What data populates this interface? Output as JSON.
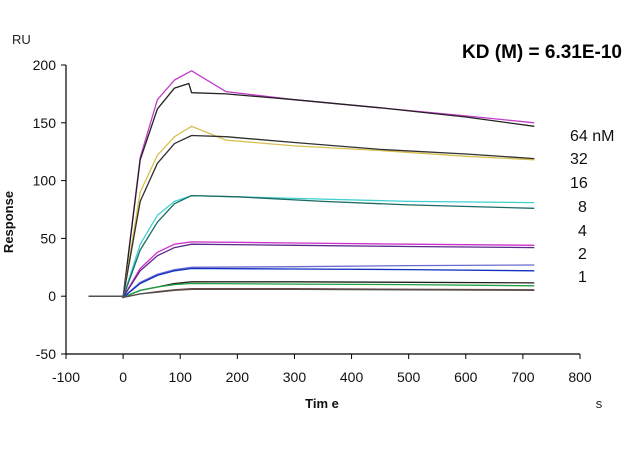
{
  "chart_data": {
    "type": "line",
    "title": "KD (M) = 6.31E-10",
    "xlabel": "Tim e",
    "ylabel": "Response",
    "y_unit": "RU",
    "x_unit": "s",
    "xlim": [
      -100,
      800
    ],
    "ylim": [
      -50,
      200
    ],
    "x_ticks": [
      "-100",
      "0",
      "100",
      "200",
      "300",
      "400",
      "500",
      "600",
      "700",
      "800"
    ],
    "y_ticks": [
      "-50",
      "0",
      "50",
      "100",
      "150",
      "200"
    ],
    "concentration_labels": [
      "64 nM",
      "32",
      "16",
      "8",
      "4",
      "2",
      "1"
    ],
    "grid": false,
    "series": [
      {
        "color": "#c03cc8",
        "values": [
          [
            -60,
            0
          ],
          [
            -2,
            0
          ],
          [
            0,
            -1
          ],
          [
            30,
            120
          ],
          [
            60,
            170
          ],
          [
            90,
            187
          ],
          [
            120,
            195
          ],
          [
            180,
            177
          ],
          [
            300,
            170
          ],
          [
            450,
            163
          ],
          [
            600,
            156
          ],
          [
            720,
            150
          ]
        ]
      },
      {
        "color": "#222222",
        "values": [
          [
            -60,
            0
          ],
          [
            -2,
            0
          ],
          [
            0,
            -1
          ],
          [
            30,
            118
          ],
          [
            60,
            162
          ],
          [
            90,
            180
          ],
          [
            115,
            184
          ],
          [
            120,
            176
          ],
          [
            180,
            175
          ],
          [
            300,
            170
          ],
          [
            450,
            163
          ],
          [
            600,
            155
          ],
          [
            720,
            147
          ]
        ]
      },
      {
        "color": "#d8c050",
        "values": [
          [
            -60,
            0
          ],
          [
            -2,
            0
          ],
          [
            0,
            -1
          ],
          [
            30,
            90
          ],
          [
            60,
            122
          ],
          [
            90,
            138
          ],
          [
            120,
            147
          ],
          [
            180,
            135
          ],
          [
            300,
            130
          ],
          [
            450,
            126
          ],
          [
            600,
            121
          ],
          [
            720,
            118
          ]
        ]
      },
      {
        "color": "#303030",
        "values": [
          [
            -60,
            0
          ],
          [
            -2,
            0
          ],
          [
            0,
            -1
          ],
          [
            30,
            82
          ],
          [
            60,
            115
          ],
          [
            90,
            132
          ],
          [
            120,
            139
          ],
          [
            180,
            138
          ],
          [
            300,
            133
          ],
          [
            450,
            127
          ],
          [
            600,
            123
          ],
          [
            720,
            119
          ]
        ]
      },
      {
        "color": "#40d0d0",
        "values": [
          [
            -60,
            0
          ],
          [
            -2,
            0
          ],
          [
            0,
            -1
          ],
          [
            30,
            45
          ],
          [
            60,
            70
          ],
          [
            90,
            82
          ],
          [
            120,
            87
          ],
          [
            200,
            86
          ],
          [
            350,
            84
          ],
          [
            500,
            82
          ],
          [
            720,
            81
          ]
        ]
      },
      {
        "color": "#1c6a64",
        "values": [
          [
            -60,
            0
          ],
          [
            -2,
            0
          ],
          [
            0,
            -1
          ],
          [
            30,
            40
          ],
          [
            60,
            64
          ],
          [
            90,
            80
          ],
          [
            120,
            87
          ],
          [
            200,
            86
          ],
          [
            350,
            82
          ],
          [
            500,
            79
          ],
          [
            720,
            76
          ]
        ]
      },
      {
        "color": "#cc30cc",
        "values": [
          [
            -60,
            0
          ],
          [
            -2,
            0
          ],
          [
            0,
            -1
          ],
          [
            30,
            24
          ],
          [
            60,
            38
          ],
          [
            90,
            45
          ],
          [
            120,
            47
          ],
          [
            300,
            46
          ],
          [
            500,
            45
          ],
          [
            720,
            44
          ]
        ]
      },
      {
        "color": "#5a2a8a",
        "values": [
          [
            -60,
            0
          ],
          [
            -2,
            0
          ],
          [
            0,
            -1
          ],
          [
            30,
            22
          ],
          [
            60,
            35
          ],
          [
            90,
            42
          ],
          [
            120,
            45
          ],
          [
            300,
            44
          ],
          [
            500,
            43
          ],
          [
            720,
            42
          ]
        ]
      },
      {
        "color": "#6a6ad0",
        "values": [
          [
            -60,
            0
          ],
          [
            -2,
            0
          ],
          [
            0,
            -1
          ],
          [
            30,
            12
          ],
          [
            60,
            19
          ],
          [
            90,
            23
          ],
          [
            120,
            25
          ],
          [
            300,
            25.5
          ],
          [
            500,
            26.5
          ],
          [
            720,
            27
          ]
        ]
      },
      {
        "color": "#1030c0",
        "values": [
          [
            -60,
            0
          ],
          [
            -2,
            0
          ],
          [
            0,
            -1
          ],
          [
            30,
            11
          ],
          [
            60,
            18
          ],
          [
            90,
            22
          ],
          [
            120,
            24
          ],
          [
            300,
            23.5
          ],
          [
            500,
            23
          ],
          [
            720,
            22
          ]
        ]
      },
      {
        "color": "#202020",
        "values": [
          [
            -60,
            0
          ],
          [
            -2,
            0
          ],
          [
            0,
            -1
          ],
          [
            30,
            5
          ],
          [
            60,
            8
          ],
          [
            90,
            11
          ],
          [
            120,
            12.5
          ],
          [
            300,
            12.5
          ],
          [
            500,
            12
          ],
          [
            720,
            11.5
          ]
        ]
      },
      {
        "color": "#20a040",
        "values": [
          [
            -60,
            0
          ],
          [
            -2,
            0
          ],
          [
            0,
            -1
          ],
          [
            30,
            5
          ],
          [
            60,
            8
          ],
          [
            90,
            10
          ],
          [
            120,
            11
          ],
          [
            300,
            10.5
          ],
          [
            500,
            10
          ],
          [
            720,
            9
          ]
        ]
      },
      {
        "color": "#804040",
        "values": [
          [
            -60,
            0
          ],
          [
            -2,
            0
          ],
          [
            0,
            -1
          ],
          [
            30,
            2
          ],
          [
            60,
            4
          ],
          [
            90,
            5.5
          ],
          [
            120,
            6.5
          ],
          [
            300,
            6.5
          ],
          [
            500,
            6
          ],
          [
            720,
            5.5
          ]
        ]
      },
      {
        "color": "#505050",
        "values": [
          [
            -60,
            0
          ],
          [
            -2,
            0
          ],
          [
            0,
            -1
          ],
          [
            30,
            2
          ],
          [
            60,
            3.5
          ],
          [
            90,
            5
          ],
          [
            120,
            6
          ],
          [
            300,
            6
          ],
          [
            500,
            5.5
          ],
          [
            720,
            5
          ]
        ]
      }
    ]
  }
}
